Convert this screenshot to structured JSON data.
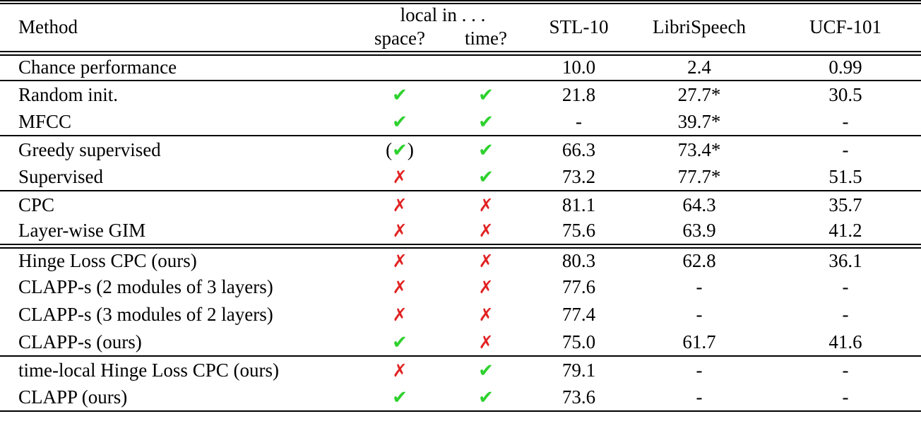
{
  "table": {
    "headers": {
      "method": "Method",
      "local_in": "local in . . .",
      "space": "space?",
      "time": "time?",
      "stl10": "STL-10",
      "librispeech": "LibriSpeech",
      "ucf101": "UCF-101"
    },
    "marks": {
      "check": "✔",
      "cross": "✗"
    },
    "colors": {
      "check": "#2ed12e",
      "cross": "#e22222"
    },
    "rows": [
      {
        "method": "Chance performance",
        "space": "none",
        "time": "none",
        "stl10": "10.0",
        "librispeech": "2.4",
        "ucf101": "0.99",
        "rule_after": "single"
      },
      {
        "method": "Random init.",
        "space": "check",
        "time": "check",
        "stl10": "21.8",
        "librispeech": "27.7*",
        "ucf101": "30.5",
        "rule_after": ""
      },
      {
        "method": "MFCC",
        "space": "check",
        "time": "check",
        "stl10": "-",
        "librispeech": "39.7*",
        "ucf101": "-",
        "rule_after": "single"
      },
      {
        "method": "Greedy supervised",
        "space": "check_paren",
        "time": "check",
        "stl10": "66.3",
        "librispeech": "73.4*",
        "ucf101": "-",
        "rule_after": ""
      },
      {
        "method": "Supervised",
        "space": "cross",
        "time": "check",
        "stl10": "73.2",
        "librispeech": "77.7*",
        "ucf101": "51.5",
        "rule_after": "single"
      },
      {
        "method": "CPC",
        "space": "cross",
        "time": "cross",
        "stl10": "81.1",
        "librispeech": "64.3",
        "ucf101": "35.7",
        "rule_after": ""
      },
      {
        "method": "Layer-wise GIM",
        "space": "cross",
        "time": "cross",
        "stl10": "75.6",
        "librispeech": "63.9",
        "ucf101": "41.2",
        "rule_after": "double"
      },
      {
        "method": "Hinge Loss CPC (ours)",
        "space": "cross",
        "time": "cross",
        "stl10": "80.3",
        "librispeech": "62.8",
        "ucf101": "36.1",
        "rule_after": ""
      },
      {
        "method": "CLAPP-s (2 modules of 3 layers)",
        "space": "cross",
        "time": "cross",
        "stl10": "77.6",
        "librispeech": "-",
        "ucf101": "-",
        "rule_after": ""
      },
      {
        "method": "CLAPP-s (3 modules of 2 layers)",
        "space": "cross",
        "time": "cross",
        "stl10": "77.4",
        "librispeech": "-",
        "ucf101": "-",
        "rule_after": ""
      },
      {
        "method": "CLAPP-s (ours)",
        "space": "check",
        "time": "cross",
        "stl10": "75.0",
        "librispeech": "61.7",
        "ucf101": "41.6",
        "rule_after": "single"
      },
      {
        "method": "time-local Hinge Loss CPC (ours)",
        "space": "cross",
        "time": "check",
        "stl10": "79.1",
        "librispeech": "-",
        "ucf101": "-",
        "rule_after": ""
      },
      {
        "method": "CLAPP (ours)",
        "space": "check",
        "time": "check",
        "stl10": "73.6",
        "librispeech": "-",
        "ucf101": "-",
        "rule_after": ""
      }
    ]
  }
}
